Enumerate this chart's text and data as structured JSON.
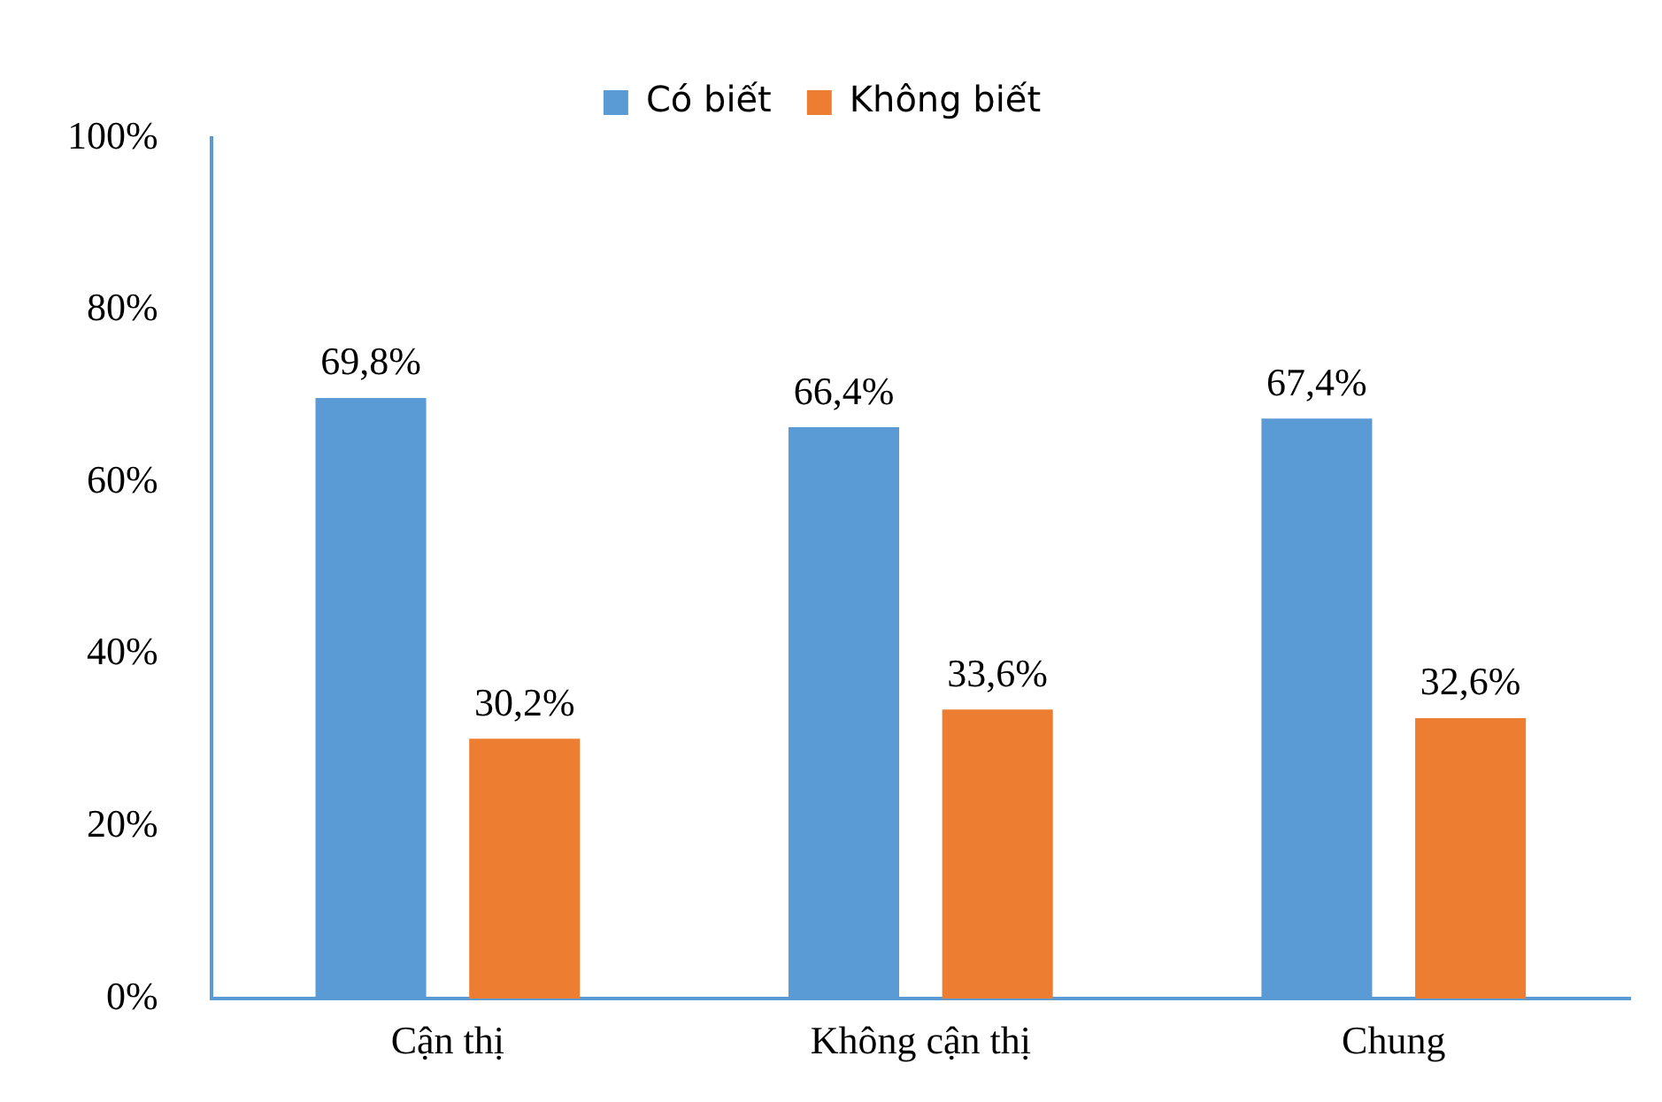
{
  "chart_data": {
    "type": "bar",
    "categories": [
      "Cận thị",
      "Không cận thị",
      "Chung"
    ],
    "series": [
      {
        "name": "Có biết",
        "color": "#5b9bd5",
        "values": [
          69.8,
          66.4,
          67.4
        ],
        "value_labels": [
          "69,8%",
          "66,4%",
          "67,4%"
        ]
      },
      {
        "name": "Không biết",
        "color": "#ed7d31",
        "values": [
          30.2,
          33.6,
          32.6
        ],
        "value_labels": [
          "30,2%",
          "33,6%",
          "32,6%"
        ]
      }
    ],
    "ylim": [
      0,
      100
    ],
    "yticks": [
      {
        "value": 0,
        "label": "0%"
      },
      {
        "value": 20,
        "label": "20%"
      },
      {
        "value": 40,
        "label": "40%"
      },
      {
        "value": 60,
        "label": "60%"
      },
      {
        "value": 80,
        "label": "80%"
      },
      {
        "value": 100,
        "label": "100%"
      }
    ],
    "grid": false,
    "legend": "top"
  }
}
